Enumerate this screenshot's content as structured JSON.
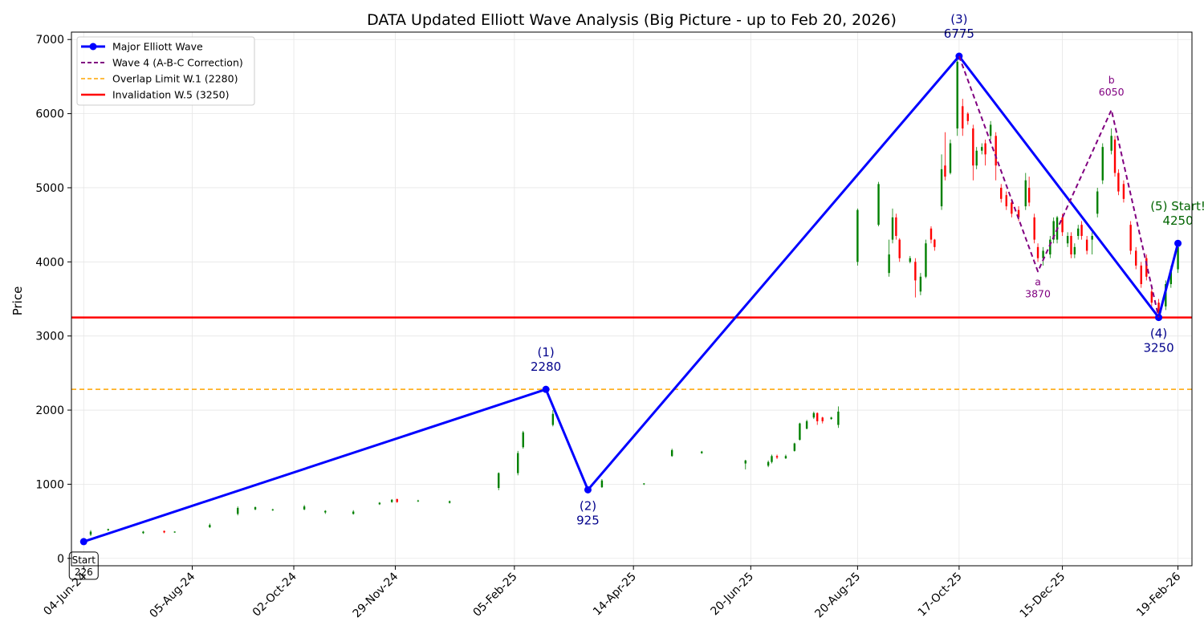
{
  "chart_data": {
    "type": "line",
    "title": "DATA Updated Elliott Wave Analysis (Big Picture - up to Feb 20, 2026)",
    "xlabel": "",
    "ylabel": "Price",
    "xlim": [
      "2024-05-28",
      "2026-02-27"
    ],
    "ylim": [
      -100,
      7100
    ],
    "grid": true,
    "legend_position": "top-left",
    "x_ticks": [
      "04-Jun-24",
      "05-Aug-24",
      "02-Oct-24",
      "29-Nov-24",
      "05-Feb-25",
      "14-Apr-25",
      "20-Jun-25",
      "20-Aug-25",
      "17-Oct-25",
      "15-Dec-25",
      "19-Feb-26"
    ],
    "y_ticks": [
      0,
      1000,
      2000,
      3000,
      4000,
      5000,
      6000,
      7000
    ],
    "series": [
      {
        "name": "Major Elliott Wave",
        "style": "solid-with-markers",
        "color": "#0000ff",
        "points": [
          {
            "date": "2024-06-04",
            "value": 226
          },
          {
            "date": "2025-02-23",
            "value": 2280
          },
          {
            "date": "2025-03-19",
            "value": 925
          },
          {
            "date": "2025-10-17",
            "value": 6775
          },
          {
            "date": "2026-02-08",
            "value": 3250
          },
          {
            "date": "2026-02-19",
            "value": 4250
          }
        ]
      },
      {
        "name": "Wave 4 (A-B-C Correction)",
        "style": "dashed",
        "color": "#800080",
        "points": [
          {
            "date": "2025-10-17",
            "value": 6775
          },
          {
            "date": "2025-12-01",
            "value": 3870
          },
          {
            "date": "2026-01-12",
            "value": 6050
          },
          {
            "date": "2026-02-08",
            "value": 3250
          }
        ]
      }
    ],
    "hlines": [
      {
        "name": "Overlap Limit W.1 (2280)",
        "value": 2280,
        "color": "#ffa500",
        "style": "dashed"
      },
      {
        "name": "Invalidation W.5 (3250)",
        "value": 3250,
        "color": "#ff0000",
        "style": "solid"
      }
    ],
    "annotations": [
      {
        "lines": [
          "(1)",
          "2280"
        ],
        "date": "2025-02-23",
        "value": 2280,
        "color": "#00008b",
        "pos": "above",
        "size": "large"
      },
      {
        "lines": [
          "(2)",
          "925"
        ],
        "date": "2025-03-19",
        "value": 925,
        "color": "#00008b",
        "pos": "below",
        "size": "large"
      },
      {
        "lines": [
          "(3)",
          "6775"
        ],
        "date": "2025-10-17",
        "value": 6775,
        "color": "#00008b",
        "pos": "above",
        "size": "large"
      },
      {
        "lines": [
          "(4)",
          "3250"
        ],
        "date": "2026-02-08",
        "value": 3250,
        "color": "#00008b",
        "pos": "below",
        "size": "large"
      },
      {
        "lines": [
          "(5) Start!",
          "4250"
        ],
        "date": "2026-02-19",
        "value": 4250,
        "color": "#006400",
        "pos": "above",
        "size": "large"
      },
      {
        "lines": [
          "a",
          "3870"
        ],
        "date": "2025-12-01",
        "value": 3870,
        "color": "#800080",
        "pos": "below",
        "size": "small"
      },
      {
        "lines": [
          "b",
          "6050"
        ],
        "date": "2026-01-12",
        "value": 6050,
        "color": "#800080",
        "pos": "above",
        "size": "small"
      }
    ],
    "start_label": {
      "lines": [
        "Start",
        "226"
      ],
      "date": "2024-06-04",
      "value": 226
    },
    "candles": [
      {
        "date": "2024-06-08",
        "open": 320,
        "close": 360,
        "high": 380,
        "low": 300
      },
      {
        "date": "2024-06-18",
        "open": 380,
        "close": 395,
        "high": 400,
        "low": 370
      },
      {
        "date": "2024-07-08",
        "open": 340,
        "close": 360,
        "high": 370,
        "low": 330
      },
      {
        "date": "2024-07-20",
        "open": 370,
        "close": 350,
        "high": 375,
        "low": 340
      },
      {
        "date": "2024-07-26",
        "open": 355,
        "close": 360,
        "high": 365,
        "low": 345
      },
      {
        "date": "2024-08-15",
        "open": 420,
        "close": 450,
        "high": 470,
        "low": 410
      },
      {
        "date": "2024-08-31",
        "open": 600,
        "close": 680,
        "high": 700,
        "low": 580
      },
      {
        "date": "2024-09-10",
        "open": 660,
        "close": 690,
        "high": 700,
        "low": 650
      },
      {
        "date": "2024-09-20",
        "open": 650,
        "close": 660,
        "high": 670,
        "low": 640
      },
      {
        "date": "2024-10-08",
        "open": 660,
        "close": 700,
        "high": 720,
        "low": 650
      },
      {
        "date": "2024-10-20",
        "open": 620,
        "close": 640,
        "high": 650,
        "low": 600
      },
      {
        "date": "2024-11-05",
        "open": 600,
        "close": 630,
        "high": 650,
        "low": 590
      },
      {
        "date": "2024-11-20",
        "open": 730,
        "close": 750,
        "high": 760,
        "low": 720
      },
      {
        "date": "2024-11-27",
        "open": 760,
        "close": 790,
        "high": 800,
        "low": 750
      },
      {
        "date": "2024-11-30",
        "open": 800,
        "close": 760,
        "high": 805,
        "low": 750
      },
      {
        "date": "2024-12-12",
        "open": 770,
        "close": 780,
        "high": 790,
        "low": 760
      },
      {
        "date": "2024-12-30",
        "open": 750,
        "close": 770,
        "high": 780,
        "low": 740
      },
      {
        "date": "2025-01-27",
        "open": 950,
        "close": 1150,
        "high": 1160,
        "low": 920
      },
      {
        "date": "2025-02-07",
        "open": 1150,
        "close": 1420,
        "high": 1450,
        "low": 1120
      },
      {
        "date": "2025-02-10",
        "open": 1500,
        "close": 1700,
        "high": 1720,
        "low": 1480
      },
      {
        "date": "2025-02-27",
        "open": 1800,
        "close": 1950,
        "high": 2000,
        "low": 1780
      },
      {
        "date": "2025-03-27",
        "open": 960,
        "close": 1050,
        "high": 1070,
        "low": 950
      },
      {
        "date": "2025-04-20",
        "open": 1000,
        "close": 1010,
        "high": 1015,
        "low": 990
      },
      {
        "date": "2025-05-06",
        "open": 1380,
        "close": 1460,
        "high": 1480,
        "low": 1370
      },
      {
        "date": "2025-05-23",
        "open": 1420,
        "close": 1440,
        "high": 1450,
        "low": 1410
      },
      {
        "date": "2025-06-17",
        "open": 1280,
        "close": 1320,
        "high": 1330,
        "low": 1200
      },
      {
        "date": "2025-06-30",
        "open": 1250,
        "close": 1300,
        "high": 1320,
        "low": 1230
      },
      {
        "date": "2025-07-02",
        "open": 1300,
        "close": 1380,
        "high": 1400,
        "low": 1280
      },
      {
        "date": "2025-07-05",
        "open": 1380,
        "close": 1360,
        "high": 1400,
        "low": 1340
      },
      {
        "date": "2025-07-10",
        "open": 1350,
        "close": 1380,
        "high": 1400,
        "low": 1340
      },
      {
        "date": "2025-07-15",
        "open": 1450,
        "close": 1550,
        "high": 1560,
        "low": 1440
      },
      {
        "date": "2025-07-18",
        "open": 1600,
        "close": 1820,
        "high": 1830,
        "low": 1590
      },
      {
        "date": "2025-07-22",
        "open": 1750,
        "close": 1850,
        "high": 1870,
        "low": 1740
      },
      {
        "date": "2025-07-26",
        "open": 1900,
        "close": 1960,
        "high": 1980,
        "low": 1880
      },
      {
        "date": "2025-07-28",
        "open": 1960,
        "close": 1850,
        "high": 1970,
        "low": 1800
      },
      {
        "date": "2025-07-31",
        "open": 1900,
        "close": 1850,
        "high": 1910,
        "low": 1820
      },
      {
        "date": "2025-08-05",
        "open": 1880,
        "close": 1900,
        "high": 1910,
        "low": 1870
      },
      {
        "date": "2025-08-09",
        "open": 1800,
        "close": 1980,
        "high": 2050,
        "low": 1760
      },
      {
        "date": "2025-08-20",
        "open": 4000,
        "close": 4700,
        "high": 4720,
        "low": 3950
      },
      {
        "date": "2025-09-01",
        "open": 4500,
        "close": 5050,
        "high": 5080,
        "low": 4480
      },
      {
        "date": "2025-09-07",
        "open": 3850,
        "close": 4100,
        "high": 4300,
        "low": 3800
      },
      {
        "date": "2025-09-09",
        "open": 4300,
        "close": 4600,
        "high": 4720,
        "low": 4250
      },
      {
        "date": "2025-09-11",
        "open": 4600,
        "close": 4350,
        "high": 4650,
        "low": 4300
      },
      {
        "date": "2025-09-13",
        "open": 4300,
        "close": 4050,
        "high": 4320,
        "low": 4000
      },
      {
        "date": "2025-09-19",
        "open": 4000,
        "close": 4050,
        "high": 4080,
        "low": 3980
      },
      {
        "date": "2025-09-22",
        "open": 4000,
        "close": 3750,
        "high": 4050,
        "low": 3520
      },
      {
        "date": "2025-09-25",
        "open": 3600,
        "close": 3800,
        "high": 3850,
        "low": 3550
      },
      {
        "date": "2025-09-28",
        "open": 3800,
        "close": 4250,
        "high": 4300,
        "low": 3780
      },
      {
        "date": "2025-10-01",
        "open": 4450,
        "close": 4300,
        "high": 4480,
        "low": 4250
      },
      {
        "date": "2025-10-03",
        "open": 4300,
        "close": 4200,
        "high": 4310,
        "low": 4150
      },
      {
        "date": "2025-10-07",
        "open": 4750,
        "close": 5250,
        "high": 5450,
        "low": 4700
      },
      {
        "date": "2025-10-09",
        "open": 5300,
        "close": 5150,
        "high": 5750,
        "low": 5100
      },
      {
        "date": "2025-10-12",
        "open": 5200,
        "close": 5600,
        "high": 5650,
        "low": 5180
      },
      {
        "date": "2025-10-16",
        "open": 5800,
        "close": 6700,
        "high": 6775,
        "low": 5700
      },
      {
        "date": "2025-10-19",
        "open": 6100,
        "close": 5800,
        "high": 6200,
        "low": 5700
      },
      {
        "date": "2025-10-22",
        "open": 6000,
        "close": 5900,
        "high": 6020,
        "low": 5850
      },
      {
        "date": "2025-10-25",
        "open": 5800,
        "close": 5300,
        "high": 5850,
        "low": 5100
      },
      {
        "date": "2025-10-27",
        "open": 5300,
        "close": 5500,
        "high": 5550,
        "low": 5250
      },
      {
        "date": "2025-10-30",
        "open": 5500,
        "close": 5550,
        "high": 5600,
        "low": 5450
      },
      {
        "date": "2025-11-01",
        "open": 5600,
        "close": 5450,
        "high": 5650,
        "low": 5300
      },
      {
        "date": "2025-11-04",
        "open": 5700,
        "close": 5850,
        "high": 5900,
        "low": 5650
      },
      {
        "date": "2025-11-07",
        "open": 5700,
        "close": 5300,
        "high": 5750,
        "low": 5100
      },
      {
        "date": "2025-11-10",
        "open": 5000,
        "close": 4850,
        "high": 5050,
        "low": 4800
      },
      {
        "date": "2025-11-13",
        "open": 4900,
        "close": 4750,
        "high": 4950,
        "low": 4700
      },
      {
        "date": "2025-11-16",
        "open": 4800,
        "close": 4650,
        "high": 4850,
        "low": 4600
      },
      {
        "date": "2025-11-20",
        "open": 4700,
        "close": 4600,
        "high": 4750,
        "low": 4550
      },
      {
        "date": "2025-11-24",
        "open": 4750,
        "close": 5100,
        "high": 5200,
        "low": 4700
      },
      {
        "date": "2025-11-26",
        "open": 5000,
        "close": 4800,
        "high": 5150,
        "low": 4750
      },
      {
        "date": "2025-11-29",
        "open": 4600,
        "close": 4300,
        "high": 4650,
        "low": 4250
      },
      {
        "date": "2025-12-01",
        "open": 4200,
        "close": 4050,
        "high": 4250,
        "low": 4000
      },
      {
        "date": "2025-12-04",
        "open": 4050,
        "close": 4150,
        "high": 4200,
        "low": 3950
      },
      {
        "date": "2025-12-08",
        "open": 4100,
        "close": 4300,
        "high": 4350,
        "low": 4050
      },
      {
        "date": "2025-12-10",
        "open": 4300,
        "close": 4550,
        "high": 4600,
        "low": 4250
      },
      {
        "date": "2025-12-12",
        "open": 4300,
        "close": 4600,
        "high": 4620,
        "low": 4250
      },
      {
        "date": "2025-12-15",
        "open": 4600,
        "close": 4400,
        "high": 4650,
        "low": 4350
      },
      {
        "date": "2025-12-18",
        "open": 4250,
        "close": 4350,
        "high": 4400,
        "low": 4200
      },
      {
        "date": "2025-12-20",
        "open": 4350,
        "close": 4100,
        "high": 4400,
        "low": 4050
      },
      {
        "date": "2025-12-22",
        "open": 4100,
        "close": 4200,
        "high": 4250,
        "low": 4050
      },
      {
        "date": "2025-12-24",
        "open": 4350,
        "close": 4450,
        "high": 4500,
        "low": 4300
      },
      {
        "date": "2025-12-26",
        "open": 4500,
        "close": 4350,
        "high": 4550,
        "low": 4300
      },
      {
        "date": "2025-12-29",
        "open": 4300,
        "close": 4150,
        "high": 4350,
        "low": 4100
      },
      {
        "date": "2026-01-01",
        "open": 4300,
        "close": 4350,
        "high": 4400,
        "low": 4100
      },
      {
        "date": "2026-01-04",
        "open": 4650,
        "close": 4950,
        "high": 5000,
        "low": 4600
      },
      {
        "date": "2026-01-07",
        "open": 5100,
        "close": 5550,
        "high": 5600,
        "low": 5050
      },
      {
        "date": "2026-01-12",
        "open": 5500,
        "close": 5700,
        "high": 5800,
        "low": 5450
      },
      {
        "date": "2026-01-14",
        "open": 5650,
        "close": 5200,
        "high": 5700,
        "low": 5150
      },
      {
        "date": "2026-01-16",
        "open": 5200,
        "close": 4950,
        "high": 5250,
        "low": 4900
      },
      {
        "date": "2026-01-19",
        "open": 5050,
        "close": 4850,
        "high": 5100,
        "low": 4800
      },
      {
        "date": "2026-01-23",
        "open": 4500,
        "close": 4150,
        "high": 4550,
        "low": 4100
      },
      {
        "date": "2026-01-26",
        "open": 4150,
        "close": 3950,
        "high": 4200,
        "low": 3900
      },
      {
        "date": "2026-01-29",
        "open": 3950,
        "close": 3700,
        "high": 4000,
        "low": 3650
      },
      {
        "date": "2026-02-01",
        "open": 4050,
        "close": 3800,
        "high": 4100,
        "low": 3750
      },
      {
        "date": "2026-02-04",
        "open": 3600,
        "close": 3450,
        "high": 3650,
        "low": 3400
      },
      {
        "date": "2026-02-08",
        "open": 3450,
        "close": 3300,
        "high": 3500,
        "low": 3250
      },
      {
        "date": "2026-02-12",
        "open": 3400,
        "close": 3700,
        "high": 3750,
        "low": 3350
      },
      {
        "date": "2026-02-15",
        "open": 3700,
        "close": 3900,
        "high": 3950,
        "low": 3650
      },
      {
        "date": "2026-02-19",
        "open": 3900,
        "close": 4200,
        "high": 4250,
        "low": 3850
      }
    ],
    "up_color": "#008000",
    "down_color": "#ff0000"
  }
}
